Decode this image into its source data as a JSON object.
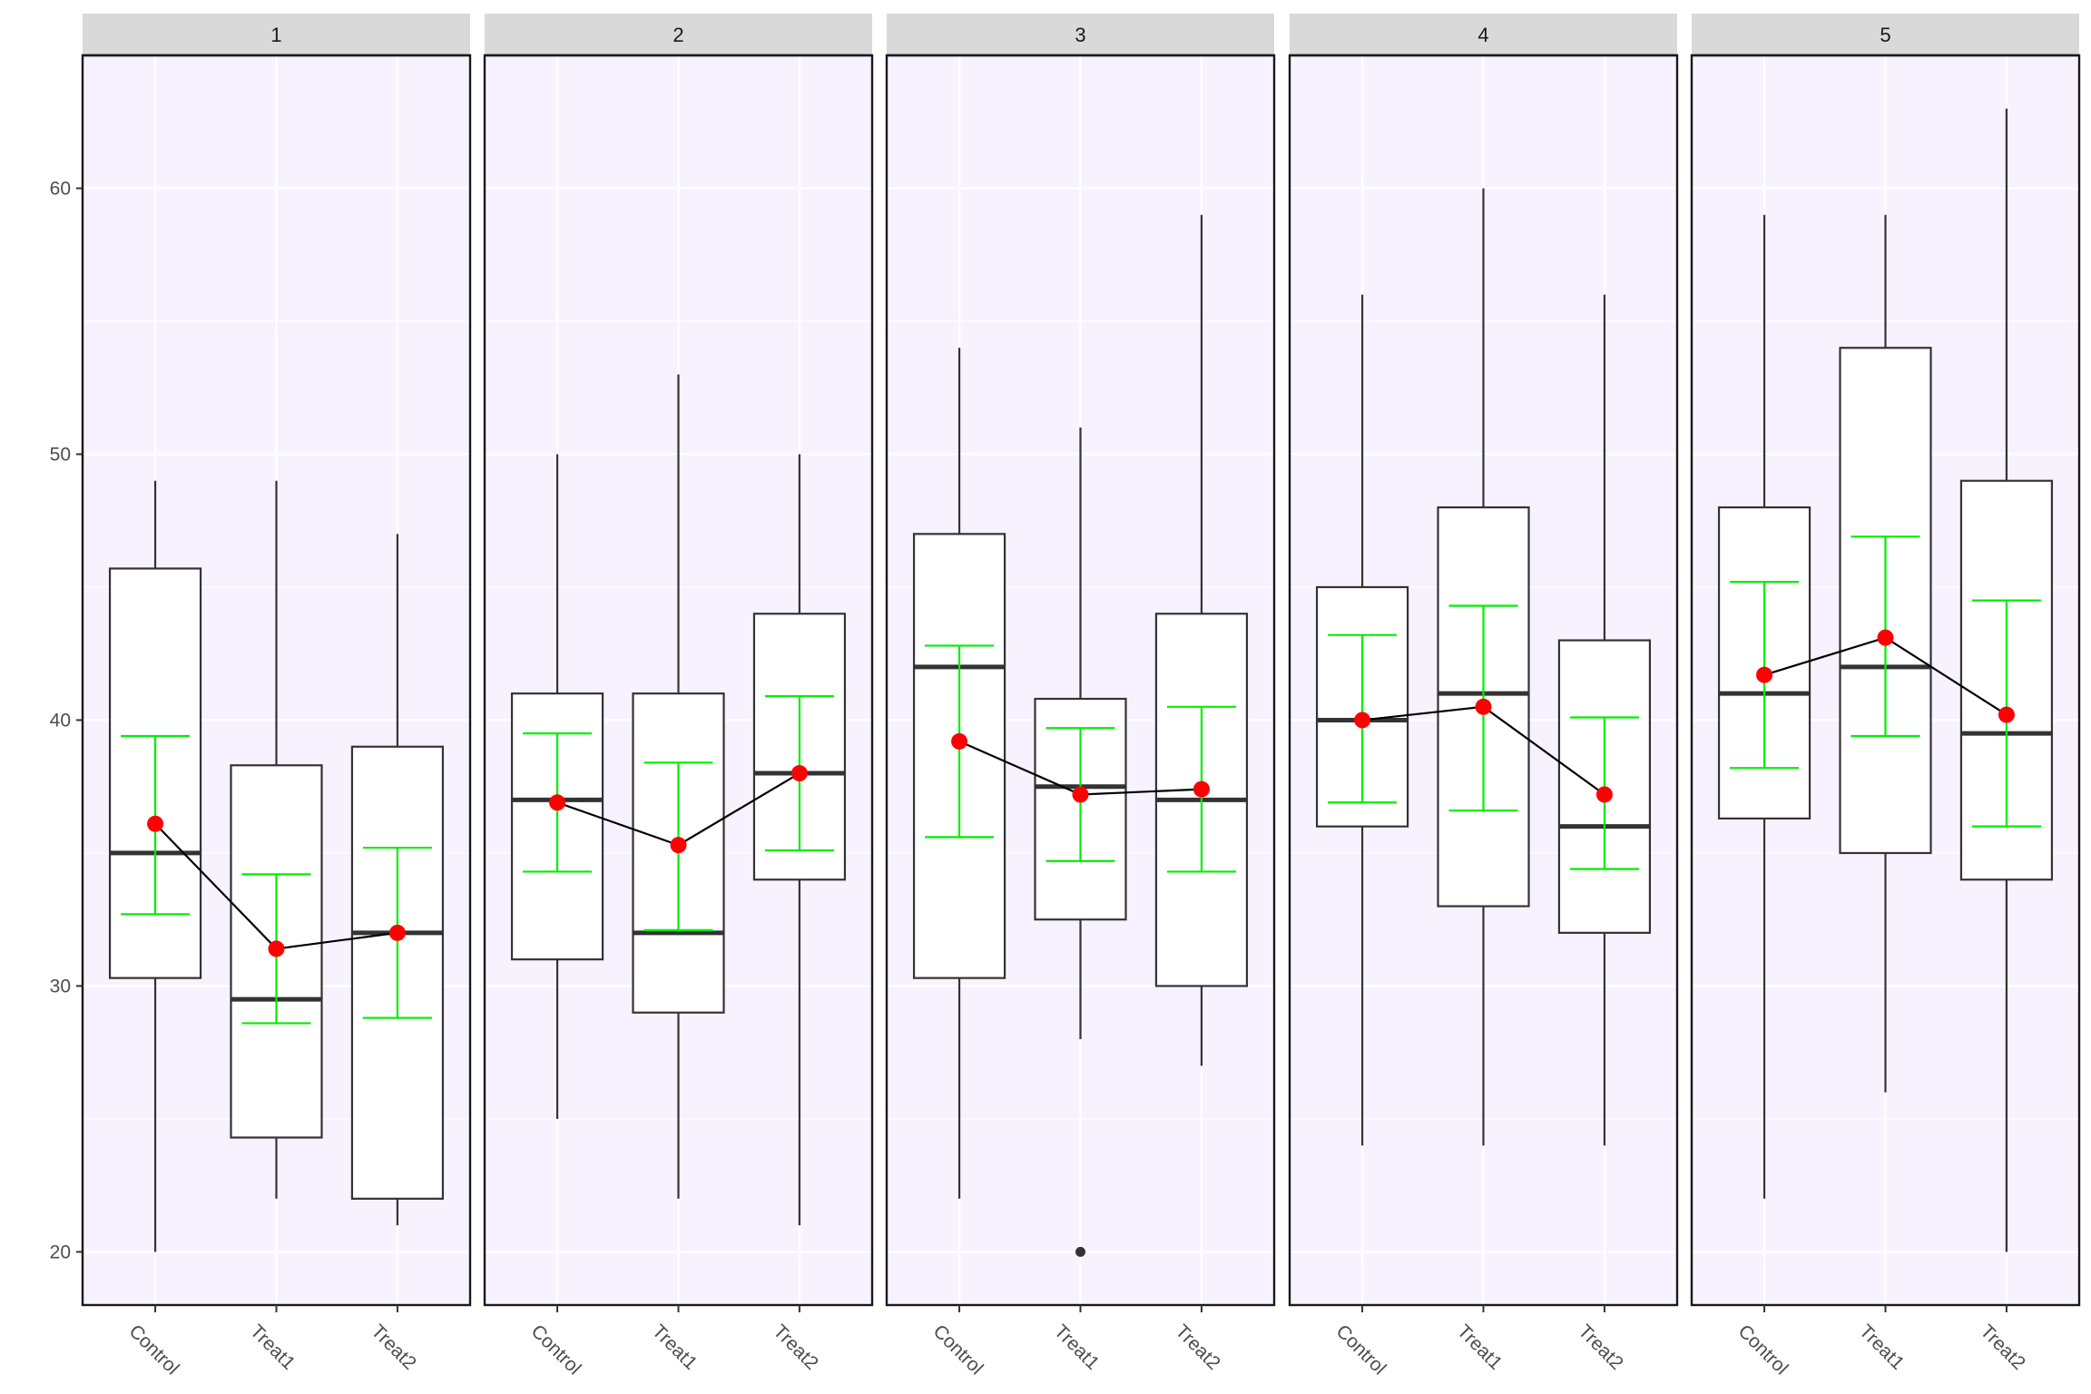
{
  "chart_data": {
    "type": "boxplot",
    "facets": [
      "1",
      "2",
      "3",
      "4",
      "5"
    ],
    "categories": [
      "Control",
      "Treat1",
      "Treat2"
    ],
    "y_ticks": [
      20,
      30,
      40,
      50,
      60
    ],
    "ylim": [
      18,
      65
    ],
    "grid": true,
    "colors": {
      "panel_bg": "#f7f2fd",
      "strip_bg": "#d9d9d9",
      "box_fill": "#ffffff",
      "box_line": "#333333",
      "mean_point": "#ff0000",
      "error_bar": "#00ee00",
      "mean_line": "#000000",
      "grid": "#ffffff"
    },
    "panels": [
      {
        "facet": "1",
        "boxes": [
          {
            "category": "Control",
            "lower": 20,
            "q1": 30.3,
            "median": 35,
            "q3": 45.7,
            "upper": 49,
            "mean": 36.1,
            "ci_low": 32.7,
            "ci_high": 39.4,
            "outliers": []
          },
          {
            "category": "Treat1",
            "lower": 22,
            "q1": 24.3,
            "median": 29.5,
            "q3": 38.3,
            "upper": 49,
            "mean": 31.4,
            "ci_low": 28.6,
            "ci_high": 34.2,
            "outliers": []
          },
          {
            "category": "Treat2",
            "lower": 21,
            "q1": 22,
            "median": 32,
            "q3": 39,
            "upper": 47,
            "mean": 32,
            "ci_low": 28.8,
            "ci_high": 35.2,
            "outliers": []
          }
        ]
      },
      {
        "facet": "2",
        "boxes": [
          {
            "category": "Control",
            "lower": 25,
            "q1": 31,
            "median": 37,
            "q3": 41,
            "upper": 50,
            "mean": 36.9,
            "ci_low": 34.3,
            "ci_high": 39.5,
            "outliers": []
          },
          {
            "category": "Treat1",
            "lower": 22,
            "q1": 29,
            "median": 32,
            "q3": 41,
            "upper": 53,
            "mean": 35.3,
            "ci_low": 32.1,
            "ci_high": 38.4,
            "outliers": []
          },
          {
            "category": "Treat2",
            "lower": 21,
            "q1": 34,
            "median": 38,
            "q3": 44,
            "upper": 50,
            "mean": 38,
            "ci_low": 35.1,
            "ci_high": 40.9,
            "outliers": []
          }
        ]
      },
      {
        "facet": "3",
        "boxes": [
          {
            "category": "Control",
            "lower": 22,
            "q1": 30.3,
            "median": 42,
            "q3": 47,
            "upper": 54,
            "mean": 39.2,
            "ci_low": 35.6,
            "ci_high": 42.8,
            "outliers": []
          },
          {
            "category": "Treat1",
            "lower": 28,
            "q1": 32.5,
            "median": 37.5,
            "q3": 40.8,
            "upper": 51,
            "mean": 37.2,
            "ci_low": 34.7,
            "ci_high": 39.7,
            "outliers": [
              20
            ]
          },
          {
            "category": "Treat2",
            "lower": 27,
            "q1": 30,
            "median": 37,
            "q3": 44,
            "upper": 59,
            "mean": 37.4,
            "ci_low": 34.3,
            "ci_high": 40.5,
            "outliers": []
          }
        ]
      },
      {
        "facet": "4",
        "boxes": [
          {
            "category": "Control",
            "lower": 24,
            "q1": 36,
            "median": 40,
            "q3": 45,
            "upper": 56,
            "mean": 40,
            "ci_low": 36.9,
            "ci_high": 43.2,
            "outliers": []
          },
          {
            "category": "Treat1",
            "lower": 24,
            "q1": 33,
            "median": 41,
            "q3": 48,
            "upper": 60,
            "mean": 40.5,
            "ci_low": 36.6,
            "ci_high": 44.3,
            "outliers": []
          },
          {
            "category": "Treat2",
            "lower": 24,
            "q1": 32,
            "median": 36,
            "q3": 43,
            "upper": 56,
            "mean": 37.2,
            "ci_low": 34.4,
            "ci_high": 40.1,
            "outliers": []
          }
        ]
      },
      {
        "facet": "5",
        "boxes": [
          {
            "category": "Control",
            "lower": 22,
            "q1": 36.3,
            "median": 41,
            "q3": 48,
            "upper": 59,
            "mean": 41.7,
            "ci_low": 38.2,
            "ci_high": 45.2,
            "outliers": []
          },
          {
            "category": "Treat1",
            "lower": 26,
            "q1": 35,
            "median": 42,
            "q3": 54,
            "upper": 59,
            "mean": 43.1,
            "ci_low": 39.4,
            "ci_high": 46.9,
            "outliers": []
          },
          {
            "category": "Treat2",
            "lower": 20,
            "q1": 34,
            "median": 39.5,
            "q3": 49,
            "upper": 63,
            "mean": 40.2,
            "ci_low": 36,
            "ci_high": 44.5,
            "outliers": []
          }
        ]
      }
    ]
  }
}
